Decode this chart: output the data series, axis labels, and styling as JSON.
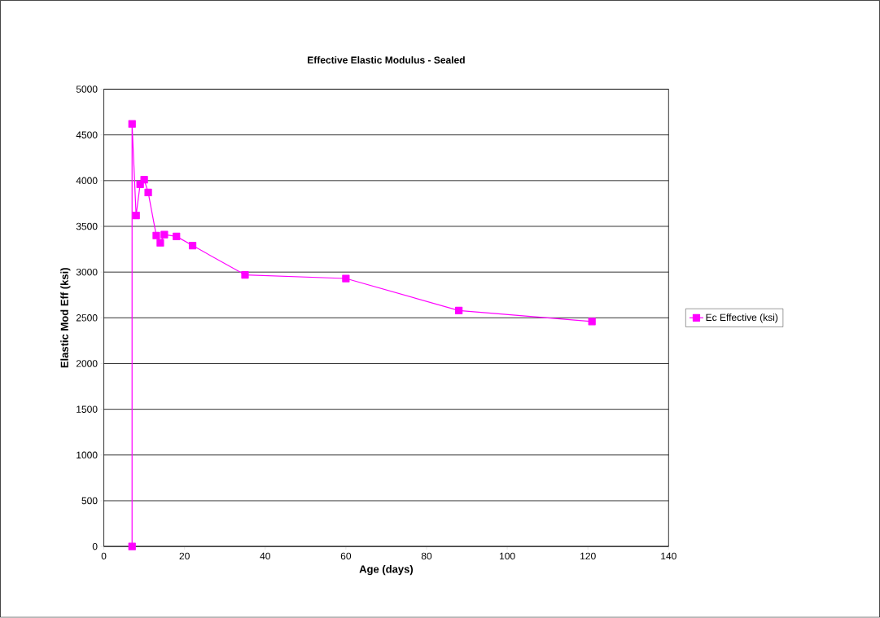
{
  "chart_data": {
    "type": "line",
    "title": "Effective Elastic Modulus - Sealed",
    "xlabel": "Age (days)",
    "ylabel": "Elastic Mod Eff (ksi)",
    "series": [
      {
        "name": "Ec Effective (ksi)",
        "color": "#ff00ff",
        "x": [
          7,
          7,
          8,
          9,
          10,
          11,
          13,
          14,
          15,
          18,
          22,
          35,
          60,
          88,
          121
        ],
        "values": [
          0,
          4620,
          3620,
          3960,
          4010,
          3870,
          3400,
          3320,
          3410,
          3390,
          3290,
          2970,
          2930,
          2580,
          2460
        ]
      }
    ],
    "xlim": [
      0,
      140
    ],
    "xticks": [
      0,
      20,
      40,
      60,
      80,
      100,
      120,
      140
    ],
    "ylim": [
      0,
      5000
    ],
    "yticks": [
      0,
      500,
      1000,
      1500,
      2000,
      2500,
      3000,
      3500,
      4000,
      4500,
      5000
    ],
    "grid": "y",
    "legend": "right",
    "marker": "square",
    "line_style": "solid"
  }
}
